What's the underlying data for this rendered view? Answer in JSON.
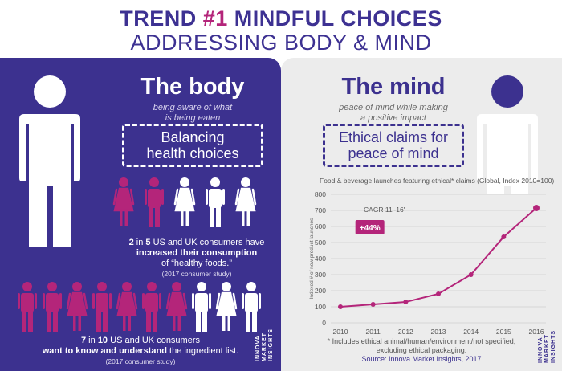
{
  "header": {
    "title_prefix": "TREND ",
    "title_accent": "#1",
    "title_rest": " MINDFUL CHOICES",
    "subtitle": "ADDRESSING BODY & MIND"
  },
  "body_panel": {
    "heading": "The body",
    "subheading_line1": "being aware of what",
    "subheading_line2": "is being eaten",
    "box_line1": "Balancing",
    "box_line2": "health choices",
    "stat1_bold_prefix": "2",
    "stat1_mid": " in ",
    "stat1_bold_num": "5",
    "stat1_rest": " US and UK consumers have",
    "stat1_bold_line2": "increased their consumption",
    "stat1_line3": "of “healthy foods.”",
    "stat1_source": "(2017 consumer study)",
    "stat2_bold_prefix": "7",
    "stat2_mid": " in ",
    "stat2_bold_num": "10",
    "stat2_rest": " US and UK consumers",
    "stat2_bold_line2": "want to know and understand",
    "stat2_line2_rest": " the ingredient list.",
    "stat2_source": "(2017 consumer study)",
    "row1_icons": [
      "female",
      "male",
      "female",
      "male",
      "female"
    ],
    "row1_highlighted": 2,
    "row2_icons": [
      "male",
      "male",
      "female",
      "male",
      "female",
      "male",
      "female",
      "male",
      "female",
      "male"
    ],
    "row2_highlighted": 7,
    "brand_line1": "INNOVA",
    "brand_line2": "MARKET",
    "brand_line3": "INSIGHTS"
  },
  "mind_panel": {
    "heading": "The mind",
    "subheading_line1": "peace of mind while making",
    "subheading_line2": "a positive impact",
    "box_line1": "Ethical claims for",
    "box_line2": "peace of mind",
    "footnote_line1": "* Includes ethical animal/human/environment/not specified,",
    "footnote_line2": "excluding ethical packaging.",
    "source": "Source: Innova Market Insights, 2017",
    "brand_line1": "INNOVA",
    "brand_line2": "MARKET",
    "brand_line3": "INSIGHTS"
  },
  "colors": {
    "purple": "#3c318f",
    "magenta": "#b4257a",
    "grey_panel": "#ececec"
  },
  "chart_data": {
    "type": "line",
    "title": "Food & beverage launches featuring ethical* claims (Global, Index 2010=100)",
    "ylabel": "Indexed # of new product launches",
    "xlabel": "",
    "x": [
      "2010",
      "2011",
      "2012",
      "2013",
      "2014",
      "2015",
      "2016"
    ],
    "values": [
      100,
      115,
      130,
      180,
      300,
      535,
      715
    ],
    "ylim": [
      0,
      800
    ],
    "yticks": [
      0,
      100,
      200,
      300,
      400,
      500,
      600,
      700,
      800
    ],
    "grid": true,
    "annotation_label": "CAGR 11'-16'",
    "annotation_value": "+44%",
    "line_color": "#b4257a"
  }
}
